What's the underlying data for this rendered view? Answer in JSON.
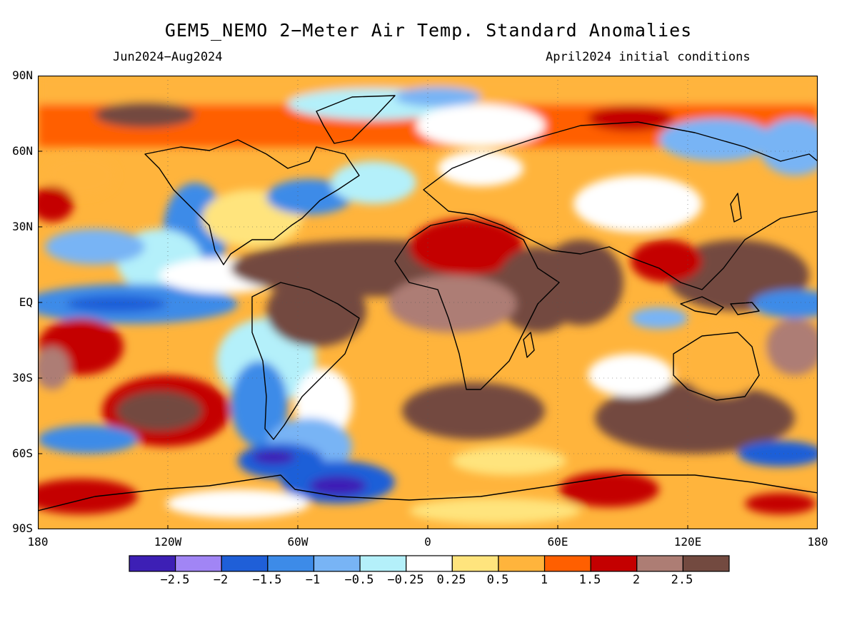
{
  "title": "GEM5_NEMO 2−Meter Air Temp. Standard Anomalies",
  "subtitle_left": "Jun2024−Aug2024",
  "subtitle_right": "April2024 initial conditions",
  "lat_labels": [
    "90N",
    "60N",
    "30N",
    "EQ",
    "30S",
    "60S",
    "90S"
  ],
  "lon_labels": [
    "180",
    "120W",
    "60W",
    "0",
    "60E",
    "120E",
    "180"
  ],
  "legend": {
    "colors": [
      "#3d1fb5",
      "#a185f5",
      "#1f5fd8",
      "#3d8be8",
      "#78b4f5",
      "#b4f0fa",
      "#ffffff",
      "#ffe47d",
      "#ffb43c",
      "#ff5f00",
      "#c40000",
      "#ad7d74",
      "#734a40"
    ],
    "labels": [
      "−2.5",
      "−2",
      "−1.5",
      "−1",
      "−0.5",
      "−0.25",
      "0.25",
      "0.5",
      "1",
      "1.5",
      "2",
      "2.5"
    ]
  }
}
